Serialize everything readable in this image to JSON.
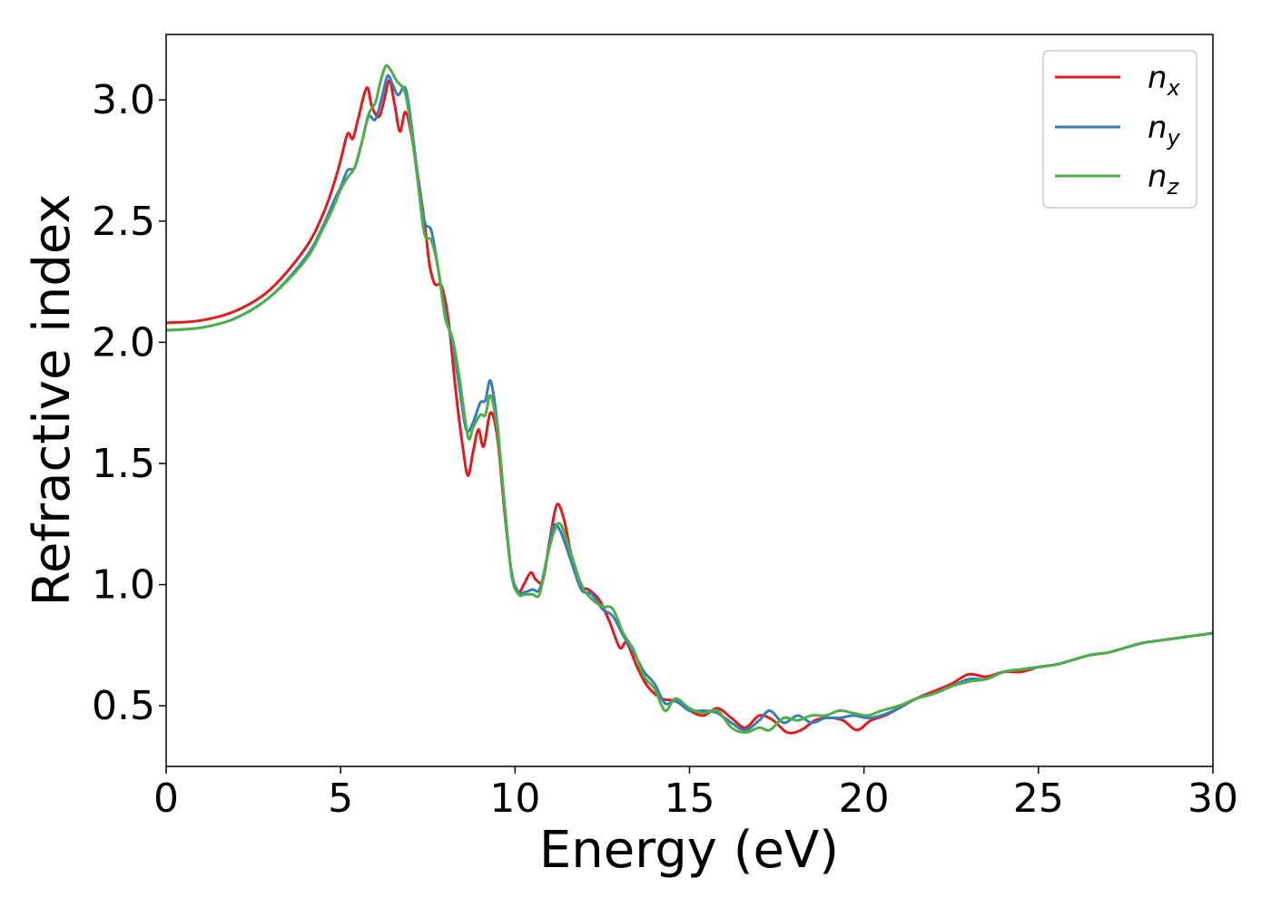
{
  "chart_data": {
    "type": "line",
    "xlabel": "Energy (eV)",
    "ylabel": "Refractive index",
    "xlim": [
      0,
      30
    ],
    "ylim": [
      0.25,
      3.27
    ],
    "x_ticks": [
      0,
      5,
      10,
      15,
      20,
      25,
      30
    ],
    "y_ticks": [
      0.5,
      1.0,
      1.5,
      2.0,
      2.5,
      3.0
    ],
    "x_tick_labels": [
      "0",
      "5",
      "10",
      "15",
      "20",
      "25",
      "30"
    ],
    "y_tick_labels": [
      "0.5",
      "1.0",
      "1.5",
      "2.0",
      "2.5",
      "3.0"
    ],
    "grid": false,
    "legend_position": "top-right",
    "series": [
      {
        "name": "n",
        "subscript": "x",
        "color": "#e41a1c",
        "points": [
          [
            0,
            2.08
          ],
          [
            1,
            2.09
          ],
          [
            2,
            2.13
          ],
          [
            3,
            2.22
          ],
          [
            4,
            2.39
          ],
          [
            4.5,
            2.53
          ],
          [
            4.8,
            2.65
          ],
          [
            5.0,
            2.75
          ],
          [
            5.2,
            2.86
          ],
          [
            5.35,
            2.84
          ],
          [
            5.5,
            2.92
          ],
          [
            5.75,
            3.05
          ],
          [
            5.9,
            2.97
          ],
          [
            6.1,
            2.93
          ],
          [
            6.25,
            3.0
          ],
          [
            6.4,
            3.08
          ],
          [
            6.55,
            2.98
          ],
          [
            6.7,
            2.87
          ],
          [
            6.85,
            2.95
          ],
          [
            7.0,
            2.88
          ],
          [
            7.2,
            2.7
          ],
          [
            7.4,
            2.5
          ],
          [
            7.55,
            2.32
          ],
          [
            7.7,
            2.24
          ],
          [
            7.9,
            2.23
          ],
          [
            8.1,
            2.08
          ],
          [
            8.3,
            1.8
          ],
          [
            8.5,
            1.57
          ],
          [
            8.65,
            1.45
          ],
          [
            8.8,
            1.55
          ],
          [
            8.95,
            1.64
          ],
          [
            9.1,
            1.57
          ],
          [
            9.3,
            1.71
          ],
          [
            9.5,
            1.6
          ],
          [
            9.7,
            1.3
          ],
          [
            9.9,
            1.05
          ],
          [
            10.1,
            0.97
          ],
          [
            10.25,
            1.0
          ],
          [
            10.45,
            1.05
          ],
          [
            10.6,
            1.02
          ],
          [
            10.8,
            1.02
          ],
          [
            11.0,
            1.19
          ],
          [
            11.2,
            1.33
          ],
          [
            11.4,
            1.27
          ],
          [
            11.6,
            1.13
          ],
          [
            11.85,
            1.0
          ],
          [
            12.1,
            0.98
          ],
          [
            12.4,
            0.94
          ],
          [
            12.7,
            0.85
          ],
          [
            13.0,
            0.74
          ],
          [
            13.2,
            0.76
          ],
          [
            13.5,
            0.66
          ],
          [
            13.8,
            0.58
          ],
          [
            14.2,
            0.53
          ],
          [
            14.6,
            0.52
          ],
          [
            15.0,
            0.48
          ],
          [
            15.4,
            0.46
          ],
          [
            15.8,
            0.49
          ],
          [
            16.2,
            0.45
          ],
          [
            16.6,
            0.41
          ],
          [
            17.0,
            0.46
          ],
          [
            17.4,
            0.44
          ],
          [
            17.8,
            0.39
          ],
          [
            18.2,
            0.4
          ],
          [
            18.6,
            0.44
          ],
          [
            19.0,
            0.45
          ],
          [
            19.4,
            0.44
          ],
          [
            19.8,
            0.4
          ],
          [
            20.2,
            0.44
          ],
          [
            20.6,
            0.46
          ],
          [
            21.0,
            0.49
          ],
          [
            21.5,
            0.53
          ],
          [
            22.0,
            0.56
          ],
          [
            22.5,
            0.59
          ],
          [
            23.0,
            0.63
          ],
          [
            23.5,
            0.62
          ],
          [
            24.0,
            0.64
          ],
          [
            24.5,
            0.64
          ],
          [
            25.0,
            0.66
          ],
          [
            25.5,
            0.67
          ],
          [
            26.0,
            0.69
          ],
          [
            26.5,
            0.71
          ],
          [
            27.0,
            0.72
          ],
          [
            27.5,
            0.74
          ],
          [
            28.0,
            0.76
          ],
          [
            28.5,
            0.77
          ],
          [
            29.0,
            0.78
          ],
          [
            29.5,
            0.79
          ],
          [
            30.0,
            0.8
          ]
        ]
      },
      {
        "name": "n",
        "subscript": "y",
        "color": "#377eb8",
        "points": [
          [
            0,
            2.05
          ],
          [
            1,
            2.06
          ],
          [
            2,
            2.1
          ],
          [
            3,
            2.19
          ],
          [
            4,
            2.35
          ],
          [
            4.5,
            2.48
          ],
          [
            4.8,
            2.58
          ],
          [
            5.0,
            2.64
          ],
          [
            5.2,
            2.71
          ],
          [
            5.4,
            2.72
          ],
          [
            5.6,
            2.82
          ],
          [
            5.8,
            2.93
          ],
          [
            6.0,
            2.92
          ],
          [
            6.2,
            3.02
          ],
          [
            6.35,
            3.1
          ],
          [
            6.5,
            3.06
          ],
          [
            6.65,
            3.02
          ],
          [
            6.85,
            3.05
          ],
          [
            7.0,
            2.93
          ],
          [
            7.2,
            2.7
          ],
          [
            7.4,
            2.5
          ],
          [
            7.6,
            2.46
          ],
          [
            7.8,
            2.3
          ],
          [
            8.0,
            2.12
          ],
          [
            8.2,
            2.0
          ],
          [
            8.4,
            1.82
          ],
          [
            8.6,
            1.64
          ],
          [
            8.8,
            1.67
          ],
          [
            9.0,
            1.75
          ],
          [
            9.15,
            1.76
          ],
          [
            9.3,
            1.84
          ],
          [
            9.5,
            1.65
          ],
          [
            9.7,
            1.32
          ],
          [
            9.9,
            1.05
          ],
          [
            10.1,
            0.97
          ],
          [
            10.3,
            0.97
          ],
          [
            10.5,
            0.98
          ],
          [
            10.7,
            0.98
          ],
          [
            10.9,
            1.1
          ],
          [
            11.1,
            1.24
          ],
          [
            11.3,
            1.22
          ],
          [
            11.6,
            1.1
          ],
          [
            11.9,
            0.98
          ],
          [
            12.2,
            0.96
          ],
          [
            12.5,
            0.9
          ],
          [
            12.8,
            0.87
          ],
          [
            13.1,
            0.79
          ],
          [
            13.4,
            0.72
          ],
          [
            13.7,
            0.64
          ],
          [
            14.0,
            0.59
          ],
          [
            14.3,
            0.51
          ],
          [
            14.6,
            0.52
          ],
          [
            15.0,
            0.48
          ],
          [
            15.4,
            0.48
          ],
          [
            15.8,
            0.47
          ],
          [
            16.2,
            0.43
          ],
          [
            16.6,
            0.4
          ],
          [
            17.0,
            0.44
          ],
          [
            17.3,
            0.48
          ],
          [
            17.7,
            0.43
          ],
          [
            18.1,
            0.46
          ],
          [
            18.5,
            0.43
          ],
          [
            18.9,
            0.45
          ],
          [
            19.3,
            0.45
          ],
          [
            19.7,
            0.46
          ],
          [
            20.1,
            0.45
          ],
          [
            20.5,
            0.46
          ],
          [
            21.0,
            0.49
          ],
          [
            21.5,
            0.53
          ],
          [
            22.0,
            0.55
          ],
          [
            22.5,
            0.58
          ],
          [
            23.0,
            0.61
          ],
          [
            23.5,
            0.61
          ],
          [
            24.0,
            0.64
          ],
          [
            24.5,
            0.65
          ],
          [
            25.0,
            0.66
          ],
          [
            25.5,
            0.67
          ],
          [
            26.0,
            0.69
          ],
          [
            26.5,
            0.71
          ],
          [
            27.0,
            0.72
          ],
          [
            27.5,
            0.74
          ],
          [
            28.0,
            0.76
          ],
          [
            28.5,
            0.77
          ],
          [
            29.0,
            0.78
          ],
          [
            29.5,
            0.79
          ],
          [
            30.0,
            0.8
          ]
        ]
      },
      {
        "name": "n",
        "subscript": "z",
        "color": "#4daf4a",
        "points": [
          [
            0,
            2.05
          ],
          [
            1,
            2.06
          ],
          [
            2,
            2.1
          ],
          [
            3,
            2.19
          ],
          [
            4,
            2.34
          ],
          [
            4.5,
            2.47
          ],
          [
            4.8,
            2.56
          ],
          [
            5.0,
            2.63
          ],
          [
            5.2,
            2.68
          ],
          [
            5.4,
            2.72
          ],
          [
            5.6,
            2.82
          ],
          [
            5.8,
            2.94
          ],
          [
            6.0,
            2.99
          ],
          [
            6.15,
            3.08
          ],
          [
            6.3,
            3.14
          ],
          [
            6.45,
            3.12
          ],
          [
            6.6,
            3.08
          ],
          [
            6.85,
            3.03
          ],
          [
            7.0,
            2.9
          ],
          [
            7.2,
            2.68
          ],
          [
            7.4,
            2.45
          ],
          [
            7.6,
            2.42
          ],
          [
            7.8,
            2.3
          ],
          [
            8.0,
            2.1
          ],
          [
            8.2,
            2.02
          ],
          [
            8.4,
            1.86
          ],
          [
            8.65,
            1.61
          ],
          [
            8.8,
            1.65
          ],
          [
            9.0,
            1.7
          ],
          [
            9.15,
            1.7
          ],
          [
            9.3,
            1.78
          ],
          [
            9.5,
            1.63
          ],
          [
            9.7,
            1.33
          ],
          [
            9.9,
            1.04
          ],
          [
            10.1,
            0.96
          ],
          [
            10.3,
            0.96
          ],
          [
            10.5,
            0.96
          ],
          [
            10.7,
            0.96
          ],
          [
            10.9,
            1.1
          ],
          [
            11.1,
            1.21
          ],
          [
            11.3,
            1.25
          ],
          [
            11.6,
            1.13
          ],
          [
            11.9,
            1.0
          ],
          [
            12.2,
            0.94
          ],
          [
            12.5,
            0.91
          ],
          [
            12.8,
            0.9
          ],
          [
            13.1,
            0.8
          ],
          [
            13.4,
            0.73
          ],
          [
            13.7,
            0.62
          ],
          [
            14.0,
            0.57
          ],
          [
            14.3,
            0.48
          ],
          [
            14.6,
            0.53
          ],
          [
            15.0,
            0.49
          ],
          [
            15.4,
            0.47
          ],
          [
            15.8,
            0.48
          ],
          [
            16.2,
            0.41
          ],
          [
            16.6,
            0.39
          ],
          [
            17.0,
            0.41
          ],
          [
            17.3,
            0.4
          ],
          [
            17.7,
            0.45
          ],
          [
            18.1,
            0.44
          ],
          [
            18.5,
            0.46
          ],
          [
            18.9,
            0.46
          ],
          [
            19.3,
            0.48
          ],
          [
            19.7,
            0.47
          ],
          [
            20.1,
            0.46
          ],
          [
            20.5,
            0.48
          ],
          [
            21.0,
            0.5
          ],
          [
            21.5,
            0.53
          ],
          [
            22.0,
            0.55
          ],
          [
            22.5,
            0.58
          ],
          [
            23.0,
            0.6
          ],
          [
            23.5,
            0.61
          ],
          [
            24.0,
            0.64
          ],
          [
            24.5,
            0.65
          ],
          [
            25.0,
            0.66
          ],
          [
            25.5,
            0.67
          ],
          [
            26.0,
            0.69
          ],
          [
            26.5,
            0.71
          ],
          [
            27.0,
            0.72
          ],
          [
            27.5,
            0.74
          ],
          [
            28.0,
            0.76
          ],
          [
            28.5,
            0.77
          ],
          [
            29.0,
            0.78
          ],
          [
            29.5,
            0.79
          ],
          [
            30.0,
            0.8
          ]
        ]
      }
    ]
  }
}
